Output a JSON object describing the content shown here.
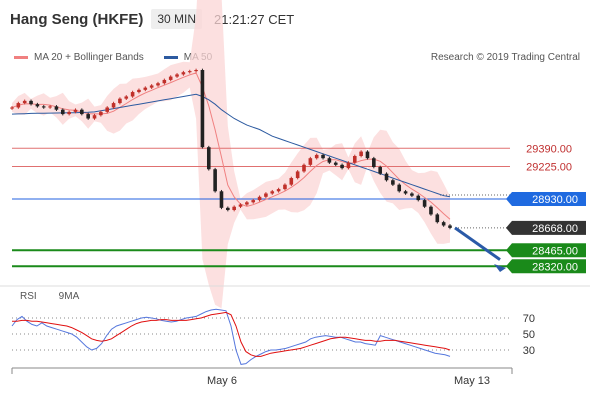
{
  "header": {
    "title": "Hang Seng (HKFE)",
    "timeframe": "30 MIN",
    "time": "21:21:27 CET"
  },
  "legend": {
    "ma20_label": "MA 20 + Bollinger Bands",
    "ma50_label": "MA 50",
    "ma20_color": "#f08080",
    "ma50_color": "#2c5aa0"
  },
  "credit": "Research © 2019 Trading Central",
  "rsi_legend": {
    "rsi_label": "RSI",
    "ma_label": "9MA",
    "rsi_color": "#5577dd",
    "ma_color": "#e01010"
  },
  "chart_data": [
    {
      "type": "line",
      "panel": "price",
      "y_domain": [
        28150,
        30100
      ],
      "levels": [
        {
          "label": "29390.00",
          "value": 29390,
          "kind": "resistance",
          "color": "#e07070"
        },
        {
          "label": "29225.00",
          "value": 29225,
          "kind": "resistance",
          "color": "#e07070"
        },
        {
          "label": "28930.00",
          "value": 28930,
          "kind": "pivot",
          "color": "#2060e0"
        },
        {
          "label": "28668.00",
          "value": 28668,
          "kind": "last",
          "color": "#333333"
        },
        {
          "label": "28465.00",
          "value": 28465,
          "kind": "support",
          "color": "#1a8a1a"
        },
        {
          "label": "28320.00",
          "value": 28320,
          "kind": "support",
          "color": "#1a8a1a"
        }
      ],
      "x_tick_labels": [
        "May 6",
        "May 13"
      ],
      "series": [
        {
          "values": [
            29760,
            29800,
            29820,
            29790,
            29770,
            29760,
            29770,
            29740,
            29700,
            29720,
            29740,
            29700,
            29660,
            29690,
            29720,
            29760,
            29800,
            29840,
            29860,
            29900,
            29920,
            29940,
            29960,
            29980,
            30010,
            30040,
            30060,
            30080,
            30090,
            30100,
            29400,
            29200,
            29000,
            28850,
            28830,
            28860,
            28880,
            28900,
            28920,
            28950,
            28980,
            29000,
            29020,
            29060,
            29120,
            29180,
            29240,
            29300,
            29330,
            29300,
            29260,
            29240,
            29210,
            29260,
            29320,
            29360,
            29300,
            29220,
            29160,
            29100,
            29060,
            29000,
            28980,
            28960,
            28920,
            28860,
            28790,
            28720,
            28690,
            28668
          ]
        },
        {
          "values": [
            29700,
            29702,
            29704,
            29706,
            29707,
            29708,
            29709,
            29710,
            29711,
            29712,
            29713,
            29715,
            29716,
            29720,
            29730,
            29740,
            29750,
            29760,
            29770,
            29780,
            29790,
            29800,
            29810,
            29820,
            29830,
            29840,
            29850,
            29860,
            29870,
            29880,
            29860,
            29830,
            29790,
            29740,
            29700,
            29660,
            29630,
            29600,
            29580,
            29560,
            29530,
            29500,
            29480,
            29460,
            29440,
            29420,
            29400,
            29380,
            29360,
            29340,
            29320,
            29300,
            29280,
            29260,
            29240,
            29220,
            29200,
            29180,
            29160,
            29140,
            29120,
            29100,
            29080,
            29060,
            29040,
            29020,
            29000,
            28980,
            28960,
            28950
          ]
        }
      ]
    },
    {
      "type": "line",
      "panel": "rsi",
      "y_domain": [
        15,
        85
      ],
      "grid_levels": [
        70,
        50,
        30
      ],
      "series": [
        {
          "values": [
            60,
            68,
            72,
            66,
            62,
            60,
            64,
            60,
            58,
            56,
            54,
            52,
            50,
            46,
            40,
            34,
            30,
            32,
            38,
            48,
            56,
            60,
            62,
            64,
            66,
            68,
            70,
            71,
            70,
            69,
            67,
            66,
            65,
            66,
            68,
            70,
            71,
            72,
            75,
            78,
            80,
            81,
            80,
            79,
            60,
            30,
            12,
            13,
            18,
            22,
            25,
            28,
            30,
            30,
            31,
            32,
            34,
            36,
            38,
            40,
            44,
            46,
            47,
            48,
            47,
            46,
            46,
            44,
            42,
            40,
            40,
            38,
            37,
            36,
            48,
            46,
            44,
            42,
            40,
            38,
            36,
            34,
            32,
            30,
            28,
            26,
            25,
            24,
            22
          ]
        },
        {
          "values": [
            66,
            66,
            67,
            67,
            66,
            66,
            65,
            64,
            63,
            62,
            61,
            60,
            58,
            55,
            52,
            48,
            44,
            42,
            41,
            42,
            44,
            48,
            52,
            56,
            60,
            63,
            65,
            66,
            67,
            67,
            68,
            68,
            67,
            67,
            67,
            67,
            68,
            69,
            70,
            72,
            74,
            75,
            76,
            77,
            74,
            60,
            40,
            28,
            24,
            22,
            22,
            24,
            26,
            27,
            28,
            29,
            30,
            31,
            32,
            34,
            36,
            38,
            40,
            42,
            44,
            45,
            46,
            46,
            45,
            44,
            43,
            42,
            42,
            41,
            41,
            42,
            42,
            42,
            41,
            40,
            39,
            38,
            37,
            36,
            35,
            34,
            33,
            32,
            30
          ]
        }
      ]
    }
  ]
}
